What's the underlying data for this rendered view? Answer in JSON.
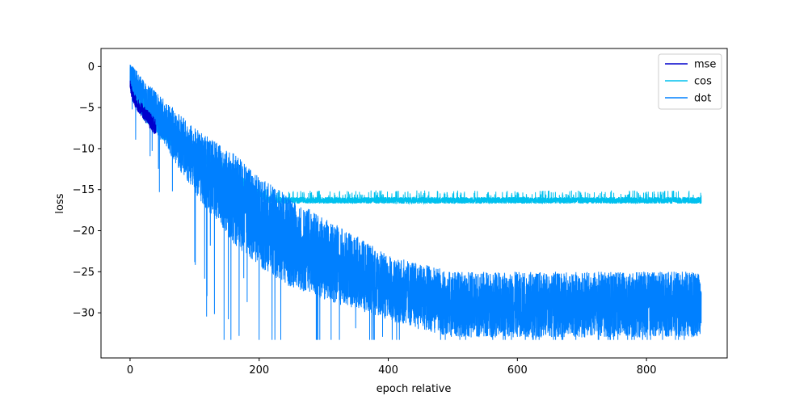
{
  "chart_data": {
    "type": "line",
    "title": "",
    "xlabel": "epoch relative",
    "ylabel": "loss",
    "xlim": [
      -45,
      925
    ],
    "ylim": [
      -35.5,
      2.2
    ],
    "x_ticks": [
      0,
      200,
      400,
      600,
      800
    ],
    "y_ticks": [
      0,
      -5,
      -10,
      -15,
      -20,
      -25,
      -30
    ],
    "grid": false,
    "legend_position": "top-right",
    "series": [
      {
        "name": "mse",
        "color": "#0000cc",
        "x": [
          0,
          2,
          5,
          10,
          20,
          30,
          40
        ],
        "y": [
          -2.0,
          -3.0,
          -3.8,
          -4.5,
          -5.5,
          -6.5,
          -7.5
        ],
        "band": [
          0.6,
          0.7,
          0.8,
          0.8,
          0.9,
          1.0,
          1.0
        ]
      },
      {
        "name": "cos",
        "color": "#00c0ee",
        "x": [
          0,
          10,
          20,
          40,
          60,
          80,
          100,
          120,
          140,
          160,
          180,
          200,
          210,
          220,
          300,
          400,
          500,
          600,
          700,
          800,
          885
        ],
        "y": [
          -1.5,
          -3.5,
          -5.0,
          -7.0,
          -8.5,
          -9.5,
          -10.5,
          -11.5,
          -12.5,
          -13.5,
          -14.5,
          -15.6,
          -16.0,
          -16.3,
          -16.3,
          -16.3,
          -16.3,
          -16.3,
          -16.3,
          -16.3,
          -16.3
        ],
        "band": [
          1.5,
          1.5,
          1.5,
          1.2,
          1.0,
          1.0,
          1.0,
          1.0,
          1.0,
          1.0,
          0.8,
          0.6,
          0.5,
          0.4,
          0.4,
          0.4,
          0.4,
          0.4,
          0.4,
          0.4,
          0.4
        ]
      },
      {
        "name": "dot",
        "color": "#0080ff",
        "x": [
          0,
          20,
          40,
          60,
          80,
          100,
          120,
          140,
          160,
          180,
          200,
          250,
          300,
          350,
          400,
          450,
          500,
          600,
          700,
          800,
          885
        ],
        "y": [
          -1.0,
          -3.5,
          -5.5,
          -7.5,
          -9.5,
          -11.5,
          -13.0,
          -14.5,
          -16.0,
          -17.5,
          -19.0,
          -21.5,
          -23.5,
          -25.0,
          -27.0,
          -28.0,
          -29.0,
          -29.0,
          -29.0,
          -29.0,
          -29.0
        ],
        "band": [
          1.5,
          2.0,
          2.5,
          3.0,
          3.5,
          4.0,
          4.5,
          5.0,
          5.5,
          5.5,
          5.5,
          5.5,
          5.0,
          4.5,
          4.0,
          4.0,
          4.0,
          4.0,
          4.0,
          4.0,
          4.0
        ]
      }
    ]
  }
}
